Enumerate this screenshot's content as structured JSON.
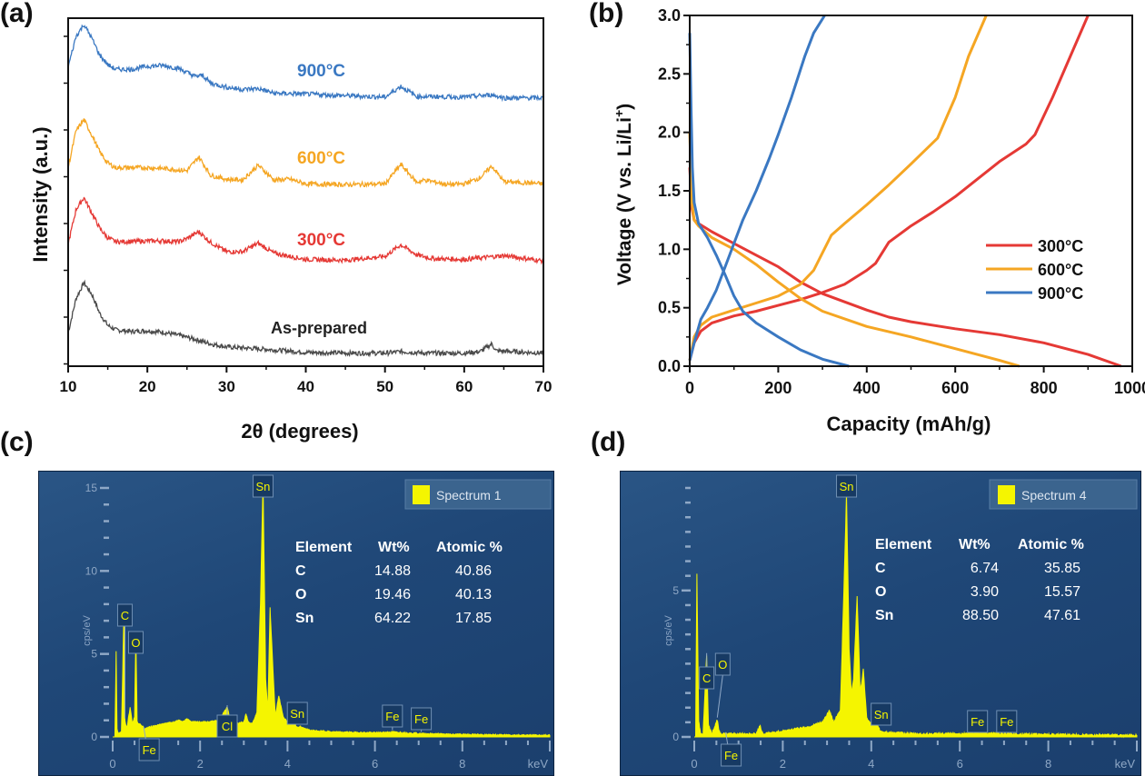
{
  "panel_labels": [
    "(a)",
    "(b)",
    "(c)",
    "(d)"
  ],
  "chart_data": [
    {
      "id": "a",
      "type": "line",
      "title": "",
      "xlabel": "2θ (degrees)",
      "ylabel": "Intensity (a.u.)",
      "xlim": [
        10,
        70
      ],
      "xticks": [
        10,
        20,
        30,
        40,
        50,
        60,
        70
      ],
      "yticks_labeled": false,
      "grid": false,
      "legend": "inline labels",
      "series": [
        {
          "name": "As-prepared",
          "color": "#4a4a4a",
          "offset": 0,
          "x": [
            10,
            11,
            12,
            13,
            14,
            15,
            16,
            18,
            20,
            22,
            24,
            26,
            28,
            30,
            35,
            40,
            45,
            50,
            52,
            55,
            60,
            62,
            63.5,
            64,
            66,
            70
          ],
          "y": [
            0.3,
            0.75,
            0.95,
            0.8,
            0.55,
            0.4,
            0.34,
            0.32,
            0.33,
            0.31,
            0.27,
            0.22,
            0.16,
            0.12,
            0.09,
            0.05,
            0.04,
            0.04,
            0.06,
            0.04,
            0.04,
            0.06,
            0.16,
            0.07,
            0.06,
            0.04
          ]
        },
        {
          "name": "300°C",
          "color": "#e53935",
          "offset": 2,
          "x": [
            10,
            11,
            12,
            13,
            14,
            15,
            16,
            18,
            20,
            22,
            24,
            25,
            26.5,
            28,
            30,
            32,
            34,
            36,
            38,
            40,
            45,
            50,
            52,
            54,
            56,
            60,
            65,
            70
          ],
          "y": [
            0.3,
            0.75,
            0.9,
            0.7,
            0.5,
            0.38,
            0.33,
            0.33,
            0.34,
            0.34,
            0.33,
            0.37,
            0.46,
            0.32,
            0.2,
            0.2,
            0.31,
            0.18,
            0.14,
            0.1,
            0.09,
            0.14,
            0.29,
            0.16,
            0.11,
            0.1,
            0.15,
            0.08
          ]
        },
        {
          "name": "600°C",
          "color": "#f5a623",
          "offset": 4,
          "x": [
            10,
            11,
            12,
            13,
            14,
            15,
            16,
            18,
            20,
            22,
            24,
            25,
            26.5,
            28,
            30,
            32,
            34,
            36,
            38,
            40,
            45,
            50,
            52,
            54,
            55,
            58,
            60,
            62,
            63.5,
            65,
            70
          ],
          "y": [
            0.3,
            0.78,
            0.92,
            0.72,
            0.5,
            0.36,
            0.3,
            0.3,
            0.3,
            0.29,
            0.27,
            0.26,
            0.44,
            0.2,
            0.15,
            0.14,
            0.33,
            0.14,
            0.15,
            0.09,
            0.08,
            0.09,
            0.34,
            0.11,
            0.14,
            0.08,
            0.09,
            0.17,
            0.32,
            0.12,
            0.09
          ]
        },
        {
          "name": "900°C",
          "color": "#3a78c2",
          "offset": 6,
          "x": [
            10,
            11,
            12,
            13,
            14,
            15,
            16,
            18,
            20,
            22,
            24,
            26,
            27,
            28,
            30,
            32,
            34,
            36,
            40,
            45,
            50,
            52,
            54,
            60,
            63.5,
            65,
            70
          ],
          "y": [
            0.45,
            0.85,
            1.0,
            0.82,
            0.6,
            0.48,
            0.42,
            0.42,
            0.46,
            0.47,
            0.43,
            0.33,
            0.34,
            0.24,
            0.19,
            0.16,
            0.17,
            0.11,
            0.1,
            0.08,
            0.06,
            0.2,
            0.07,
            0.06,
            0.09,
            0.05,
            0.05
          ]
        }
      ],
      "annotations": [
        "900°C",
        "600°C",
        "300°C",
        "As-prepared"
      ]
    },
    {
      "id": "b",
      "type": "line",
      "title": "",
      "xlabel": "Capacity (mAh/g)",
      "ylabel": "Voltage (V vs. Li/Li+)",
      "xlim": [
        0,
        1000
      ],
      "ylim": [
        0,
        3.0
      ],
      "xticks": [
        0,
        200,
        400,
        600,
        800,
        1000
      ],
      "yticks": [
        0.0,
        0.5,
        1.0,
        1.5,
        2.0,
        2.5,
        3.0
      ],
      "ytick_labels": [
        "0.0",
        "0.5",
        "1.0",
        "1.5",
        "2.0",
        "2.5",
        "3.0"
      ],
      "grid": false,
      "legend": "center-right",
      "series": [
        {
          "name": "300°C",
          "color": "#e53935",
          "discharge": {
            "x": [
              0,
              5,
              10,
              20,
              50,
              100,
              150,
              200,
              250,
              300,
              350,
              400,
              450,
              500,
              600,
              700,
              800,
              900,
              975
            ],
            "y": [
              1.7,
              1.35,
              1.25,
              1.22,
              1.15,
              1.05,
              0.95,
              0.85,
              0.72,
              0.62,
              0.55,
              0.48,
              0.42,
              0.38,
              0.32,
              0.27,
              0.2,
              0.1,
              0.0
            ]
          },
          "charge": {
            "x": [
              0,
              10,
              25,
              50,
              100,
              150,
              200,
              250,
              300,
              350,
              400,
              420,
              450,
              500,
              550,
              600,
              650,
              700,
              760,
              780,
              820,
              860,
              900
            ],
            "y": [
              0.05,
              0.2,
              0.3,
              0.37,
              0.43,
              0.47,
              0.52,
              0.57,
              0.63,
              0.7,
              0.82,
              0.88,
              1.06,
              1.2,
              1.32,
              1.45,
              1.6,
              1.75,
              1.9,
              1.98,
              2.3,
              2.65,
              3.0
            ]
          }
        },
        {
          "name": "600°C",
          "color": "#f5a623",
          "discharge": {
            "x": [
              0,
              5,
              10,
              20,
              50,
              100,
              150,
              200,
              250,
              300,
              400,
              500,
              600,
              700,
              745
            ],
            "y": [
              2.0,
              1.4,
              1.25,
              1.2,
              1.1,
              1.0,
              0.87,
              0.72,
              0.58,
              0.47,
              0.34,
              0.25,
              0.15,
              0.05,
              0.0
            ]
          },
          "charge": {
            "x": [
              0,
              10,
              25,
              50,
              100,
              150,
              200,
              250,
              280,
              300,
              320,
              350,
              400,
              450,
              500,
              560,
              600,
              630,
              670
            ],
            "y": [
              0.05,
              0.25,
              0.35,
              0.42,
              0.48,
              0.54,
              0.6,
              0.7,
              0.82,
              0.97,
              1.12,
              1.22,
              1.38,
              1.55,
              1.73,
              1.95,
              2.3,
              2.65,
              3.0
            ]
          }
        },
        {
          "name": "900°C",
          "color": "#3a78c2",
          "discharge": {
            "x": [
              0,
              3,
              6,
              10,
              20,
              40,
              60,
              80,
              100,
              120,
              150,
              200,
              250,
              300,
              360
            ],
            "y": [
              2.85,
              2.2,
              1.7,
              1.4,
              1.22,
              1.1,
              0.95,
              0.78,
              0.6,
              0.47,
              0.37,
              0.25,
              0.14,
              0.06,
              0.0
            ]
          },
          "charge": {
            "x": [
              0,
              10,
              25,
              40,
              60,
              80,
              100,
              120,
              150,
              180,
              200,
              230,
              260,
              280,
              305
            ],
            "y": [
              0.05,
              0.2,
              0.4,
              0.5,
              0.65,
              0.85,
              1.05,
              1.25,
              1.5,
              1.78,
              1.98,
              2.3,
              2.65,
              2.85,
              3.0
            ]
          }
        }
      ]
    },
    {
      "id": "c",
      "type": "area",
      "title": "",
      "xlabel": "keV",
      "ylabel": "cps/eV",
      "xlim": [
        0,
        10
      ],
      "ylim": [
        0,
        15
      ],
      "xticks": [
        0,
        2,
        4,
        6,
        8
      ],
      "yticks": [
        0,
        5,
        10,
        15
      ],
      "legend": "top-right",
      "legend_label": "Spectrum 1",
      "color": "#f5f500",
      "spectrum": {
        "x": [
          0,
          0.05,
          0.08,
          0.1,
          0.12,
          0.2,
          0.26,
          0.28,
          0.3,
          0.33,
          0.4,
          0.45,
          0.5,
          0.53,
          0.56,
          0.6,
          0.7,
          0.71,
          0.75,
          0.85,
          1.0,
          1.2,
          1.4,
          1.5,
          1.6,
          1.7,
          1.8,
          2.0,
          2.2,
          2.4,
          2.55,
          2.62,
          2.7,
          2.8,
          3.0,
          3.05,
          3.1,
          3.2,
          3.3,
          3.38,
          3.44,
          3.5,
          3.55,
          3.6,
          3.66,
          3.72,
          3.8,
          3.9,
          4.0,
          4.1,
          4.2,
          4.3,
          4.4,
          4.5,
          5,
          6,
          6.4,
          7,
          8,
          9,
          10
        ],
        "y": [
          0,
          0,
          5.2,
          0.5,
          0.2,
          0.3,
          7.8,
          1,
          0.7,
          0.6,
          1.8,
          0.8,
          1.2,
          6.0,
          0.9,
          0.8,
          0.6,
          0.5,
          0.5,
          0.6,
          0.7,
          0.8,
          0.9,
          1.0,
          0.9,
          1.1,
          0.9,
          0.9,
          0.9,
          1.0,
          1.5,
          1.8,
          0.9,
          0.8,
          0.9,
          1.4,
          0.9,
          0.8,
          1.5,
          8,
          15.5,
          3.5,
          1.5,
          7.8,
          4.5,
          1.2,
          2.5,
          1.2,
          0.9,
          1.2,
          0.6,
          0.6,
          0.5,
          0.4,
          0.3,
          0.25,
          0.3,
          0.2,
          0.15,
          0.12,
          0.1
        ]
      },
      "peak_labels": [
        {
          "label": "C",
          "x": 0.28
        },
        {
          "label": "O",
          "x": 0.53
        },
        {
          "label": "Fe",
          "x": 0.71
        },
        {
          "label": "Cl",
          "x": 2.62
        },
        {
          "label": "Sn",
          "x": 3.44
        },
        {
          "label": "Sn",
          "x": 4.1
        },
        {
          "label": "Fe",
          "x": 6.4
        },
        {
          "label": "Fe",
          "x": 7.06
        }
      ],
      "table": {
        "headers": [
          "Element",
          "Wt%",
          "Atomic %"
        ],
        "rows": [
          [
            "C",
            "14.88",
            "40.86"
          ],
          [
            "O",
            "19.46",
            "40.13"
          ],
          [
            "Sn",
            "64.22",
            "17.85"
          ]
        ]
      }
    },
    {
      "id": "d",
      "type": "area",
      "title": "",
      "xlabel": "keV",
      "ylabel": "cps/eV",
      "xlim": [
        0,
        10
      ],
      "ylim": [
        0,
        8.5
      ],
      "xticks": [
        0,
        2,
        4,
        6,
        8
      ],
      "yticks": [
        0,
        5
      ],
      "legend": "top-right",
      "legend_label": "Spectrum 4",
      "color": "#f5f500",
      "spectrum": {
        "x": [
          0,
          0.03,
          0.06,
          0.1,
          0.15,
          0.2,
          0.26,
          0.28,
          0.32,
          0.4,
          0.52,
          0.56,
          0.6,
          0.7,
          0.8,
          1.0,
          1.4,
          1.48,
          1.55,
          1.8,
          2.2,
          2.6,
          2.9,
          3.05,
          3.15,
          3.3,
          3.38,
          3.44,
          3.5,
          3.55,
          3.6,
          3.68,
          3.75,
          3.82,
          3.9,
          4.0,
          4.1,
          4.2,
          4.4,
          5,
          6,
          6.4,
          7,
          8,
          9,
          10
        ],
        "y": [
          0,
          0,
          5.6,
          0.5,
          0.1,
          0.1,
          2.2,
          2.8,
          0.4,
          0.1,
          0.6,
          0.2,
          0.1,
          0.1,
          0.1,
          0.1,
          0.1,
          0.4,
          0.1,
          0.15,
          0.25,
          0.35,
          0.5,
          0.9,
          0.5,
          0.9,
          5,
          8.3,
          3,
          1.5,
          2,
          4.8,
          1.5,
          2.3,
          0.6,
          0.5,
          0.5,
          0.2,
          0.15,
          0.1,
          0.1,
          0.15,
          0.1,
          0.08,
          0.06,
          0.05
        ]
      },
      "peak_labels": [
        {
          "label": "C",
          "x": 0.28
        },
        {
          "label": "O",
          "x": 0.52
        },
        {
          "label": "Fe",
          "x": 0.71
        },
        {
          "label": "Sn",
          "x": 3.44
        },
        {
          "label": "Sn",
          "x": 4.1
        },
        {
          "label": "Fe",
          "x": 6.4
        },
        {
          "label": "Fe",
          "x": 7.06
        }
      ],
      "table": {
        "headers": [
          "Element",
          "Wt%",
          "Atomic %"
        ],
        "rows": [
          [
            "C",
            "6.74",
            "35.85"
          ],
          [
            "O",
            "3.90",
            "15.57"
          ],
          [
            "Sn",
            "88.50",
            "47.61"
          ]
        ]
      }
    }
  ]
}
